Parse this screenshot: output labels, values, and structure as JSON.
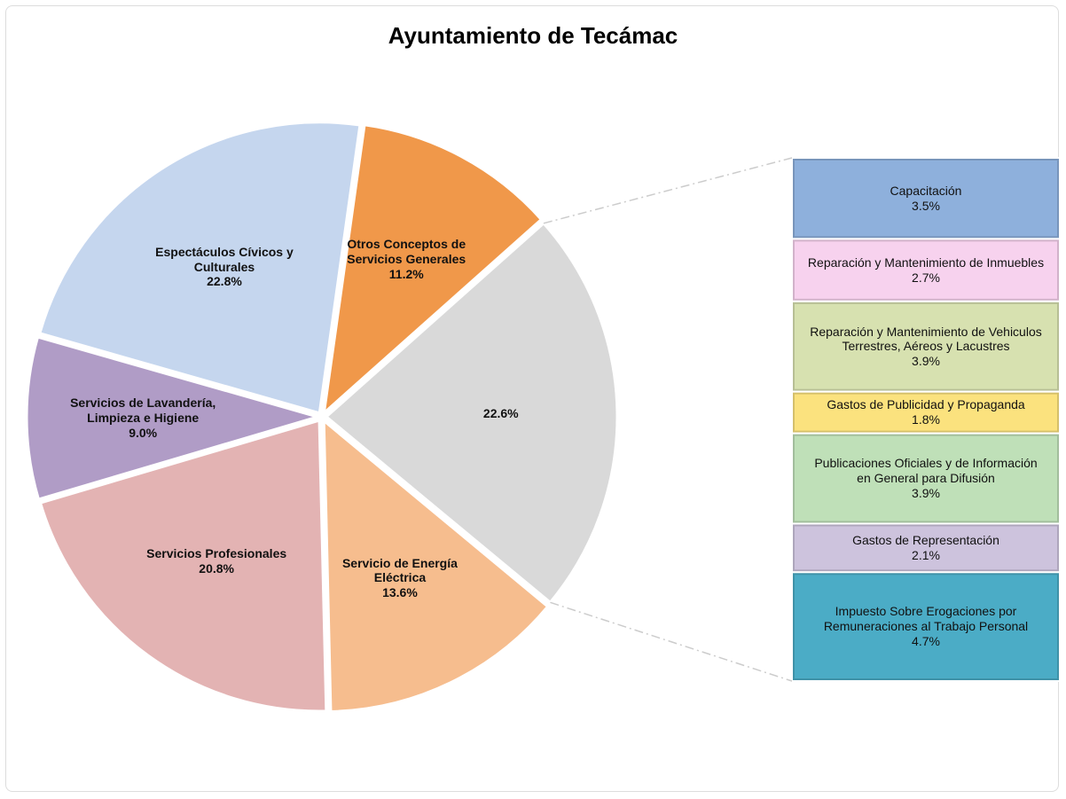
{
  "chart_data": {
    "type": "pie",
    "title": "Ayuntamiento de Tecámac",
    "categories": [
      "Otros Conceptos de Servicios Generales",
      null,
      "Servicio de Energía Eléctrica",
      "Servicios Profesionales",
      "Servicios de Lavandería, Limpieza e Higiene",
      "Espectáculos Cívicos y Culturales"
    ],
    "values": [
      11.2,
      22.6,
      13.6,
      20.8,
      9.0,
      22.8
    ],
    "value_labels": [
      "11.2%",
      "22.6%",
      "13.6%",
      "20.8%",
      "9.0%",
      "22.8%"
    ],
    "colors": [
      "#f0984a",
      "#d9d9d9",
      "#f6bd8e",
      "#e3b3b3",
      "#b09cc6",
      "#c5d6ee"
    ],
    "breakdown": {
      "categories": [
        "Capacitación",
        "Reparación y Mantenimiento de Inmuebles",
        "Reparación y Mantenimiento de Vehiculos Terrestres, Aéreos y Lacustres",
        "Gastos de Publicidad y Propaganda",
        "Publicaciones Oficiales y de Información en General para Difusión",
        "Gastos de Representación",
        "Impuesto Sobre Erogaciones por Remuneraciones al Trabajo Personal"
      ],
      "values": [
        3.5,
        2.7,
        3.9,
        1.8,
        3.9,
        2.1,
        4.7
      ],
      "value_labels": [
        "3.5%",
        "2.7%",
        "3.9%",
        "1.8%",
        "3.9%",
        "2.1%",
        "4.7%"
      ],
      "colors": [
        "#8eb0dc",
        "#f7d2ee",
        "#d7e1b0",
        "#fbe27e",
        "#bfe0b8",
        "#cdc3dd",
        "#4bacc6"
      ]
    }
  }
}
